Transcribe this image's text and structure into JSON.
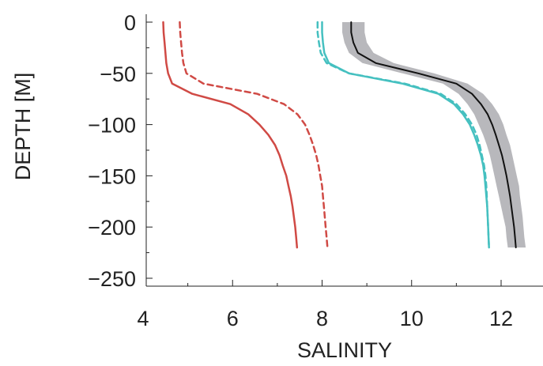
{
  "chart_data": {
    "type": "line",
    "title": "",
    "xlabel": "SALINITY",
    "ylabel": "DEPTH [M]",
    "xlim": [
      4,
      13
    ],
    "ylim": [
      -260,
      0
    ],
    "xticks": [
      4,
      6,
      8,
      10,
      12
    ],
    "yticks": [
      0,
      -50,
      -100,
      -150,
      -200,
      -250
    ],
    "xtick_labels": [
      "4",
      "6",
      "8",
      "10",
      "12"
    ],
    "ytick_labels": [
      "0",
      "−50",
      "−100",
      "−150",
      "−200",
      "−250"
    ],
    "grid": false,
    "depth": [
      0,
      -10,
      -20,
      -30,
      -40,
      -50,
      -60,
      -70,
      -80,
      -90,
      -100,
      -110,
      -120,
      -130,
      -140,
      -150,
      -160,
      -170,
      -180,
      -190,
      -200,
      -210,
      -220
    ],
    "band": {
      "color": "#b8b8bc",
      "lower": [
        8.45,
        8.45,
        8.5,
        8.6,
        8.9,
        9.8,
        10.7,
        11.05,
        11.25,
        11.4,
        11.5,
        11.6,
        11.68,
        11.75,
        11.8,
        11.85,
        11.9,
        11.95,
        12.0,
        12.05,
        12.1,
        12.12,
        12.15
      ],
      "upper": [
        8.95,
        8.95,
        9.0,
        9.15,
        9.6,
        10.5,
        11.25,
        11.6,
        11.8,
        11.95,
        12.05,
        12.12,
        12.2,
        12.25,
        12.3,
        12.35,
        12.4,
        12.42,
        12.45,
        12.48,
        12.5,
        12.52,
        12.55
      ]
    },
    "series": [
      {
        "color": "#d04a45",
        "dash": "solid",
        "values": [
          4.45,
          4.46,
          4.48,
          4.5,
          4.52,
          4.56,
          4.65,
          5.1,
          5.95,
          6.35,
          6.6,
          6.8,
          6.95,
          7.05,
          7.12,
          7.2,
          7.25,
          7.3,
          7.34,
          7.37,
          7.4,
          7.42,
          7.44
        ]
      },
      {
        "color": "#d04a45",
        "dash": "dashed",
        "values": [
          4.82,
          4.83,
          4.85,
          4.87,
          4.9,
          4.97,
          5.35,
          6.55,
          7.15,
          7.45,
          7.62,
          7.72,
          7.8,
          7.87,
          7.92,
          7.96,
          8.0,
          8.02,
          8.04,
          8.06,
          8.08,
          8.1,
          8.12
        ]
      },
      {
        "color": "#45c0c0",
        "dash": "solid",
        "values": [
          8.0,
          8.0,
          8.02,
          8.05,
          8.15,
          8.6,
          9.8,
          10.6,
          10.95,
          11.15,
          11.3,
          11.4,
          11.48,
          11.55,
          11.6,
          11.63,
          11.65,
          11.67,
          11.69,
          11.7,
          11.71,
          11.72,
          11.73
        ]
      },
      {
        "color": "#45c0c0",
        "dash": "dashed",
        "values": [
          7.9,
          7.9,
          7.93,
          7.97,
          8.1,
          8.6,
          9.85,
          10.65,
          11.0,
          11.2,
          11.35,
          11.45,
          11.52,
          11.57,
          11.62,
          11.65,
          11.67,
          11.68,
          11.69,
          11.7,
          11.71,
          11.72,
          11.73
        ]
      },
      {
        "color": "#111111",
        "dash": "solid",
        "values": [
          8.65,
          8.65,
          8.7,
          8.8,
          9.2,
          10.15,
          11.0,
          11.35,
          11.55,
          11.7,
          11.8,
          11.88,
          11.95,
          12.02,
          12.07,
          12.12,
          12.16,
          12.2,
          12.23,
          12.26,
          12.29,
          12.31,
          12.33
        ]
      }
    ]
  }
}
